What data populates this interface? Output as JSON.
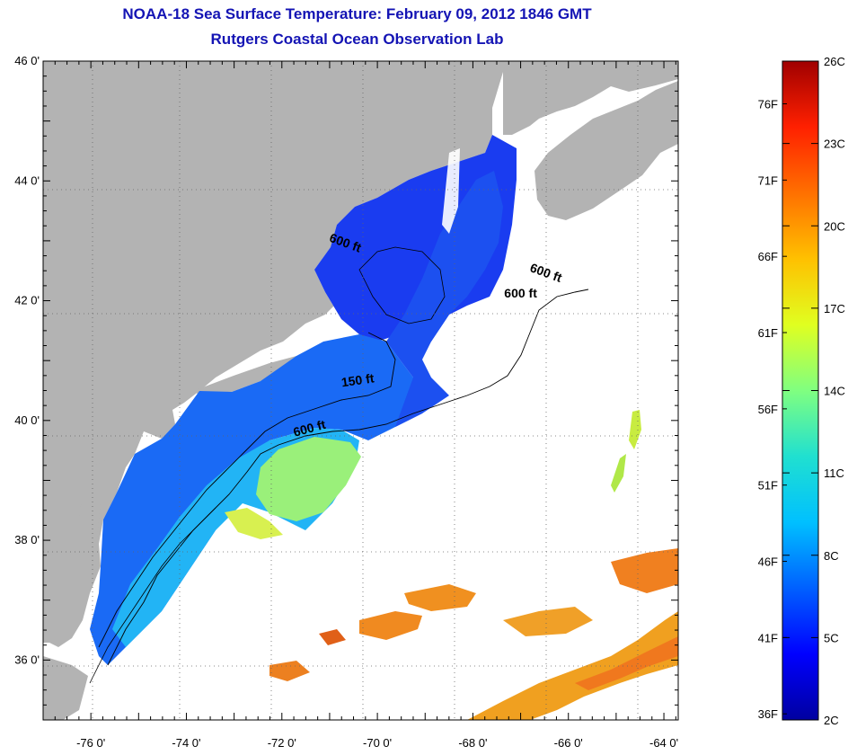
{
  "title": "NOAA-18 Sea Surface Temperature:  February 09, 2012 1846 GMT",
  "subtitle": "Rutgers Coastal Ocean Observation Lab",
  "map": {
    "lat_labels": [
      {
        "lat": 46,
        "text": "46 0'"
      },
      {
        "lat": 44,
        "text": "44 0'"
      },
      {
        "lat": 42,
        "text": "42 0'"
      },
      {
        "lat": 40,
        "text": "40 0'"
      },
      {
        "lat": 38,
        "text": "38 0'"
      },
      {
        "lat": 36,
        "text": "36 0'"
      }
    ],
    "lon_labels": [
      {
        "lon": -76,
        "text": "-76 0'"
      },
      {
        "lon": -74,
        "text": "-74 0'"
      },
      {
        "lon": -72,
        "text": "-72 0'"
      },
      {
        "lon": -70,
        "text": "-70 0'"
      },
      {
        "lon": -68,
        "text": "-68 0'"
      },
      {
        "lon": -66,
        "text": "-66 0'"
      },
      {
        "lon": -64,
        "text": "-64 0'"
      }
    ],
    "lon_range": [
      -77.0,
      -63.7
    ],
    "lat_range": [
      35.0,
      46.0
    ],
    "grid": "dotted",
    "contour_labels": [
      {
        "text": "600 ft",
        "lon": -70.7,
        "lat": 42.9
      },
      {
        "text": "600 ft",
        "lon": -66.5,
        "lat": 42.4
      },
      {
        "text": "600 ft",
        "lon": -67.0,
        "lat": 42.05
      },
      {
        "text": "150 ft",
        "lon": -70.4,
        "lat": 40.6
      },
      {
        "text": "600 ft",
        "lon": -71.4,
        "lat": 39.8
      }
    ]
  },
  "colorbar": {
    "colors": [
      "#0000a0",
      "#0000ff",
      "#0060ff",
      "#00c0ff",
      "#20e0d0",
      "#80ff80",
      "#e0ff20",
      "#ffc000",
      "#ff7000",
      "#ff2000",
      "#a00000"
    ],
    "celsius_range": [
      2,
      26
    ],
    "labels_f": [
      "76F",
      "71F",
      "66F",
      "61F",
      "56F",
      "51F",
      "46F",
      "41F",
      "36F"
    ],
    "labels_c": [
      "26C",
      "23C",
      "20C",
      "17C",
      "14C",
      "11C",
      "8C",
      "5C",
      "2C"
    ]
  }
}
